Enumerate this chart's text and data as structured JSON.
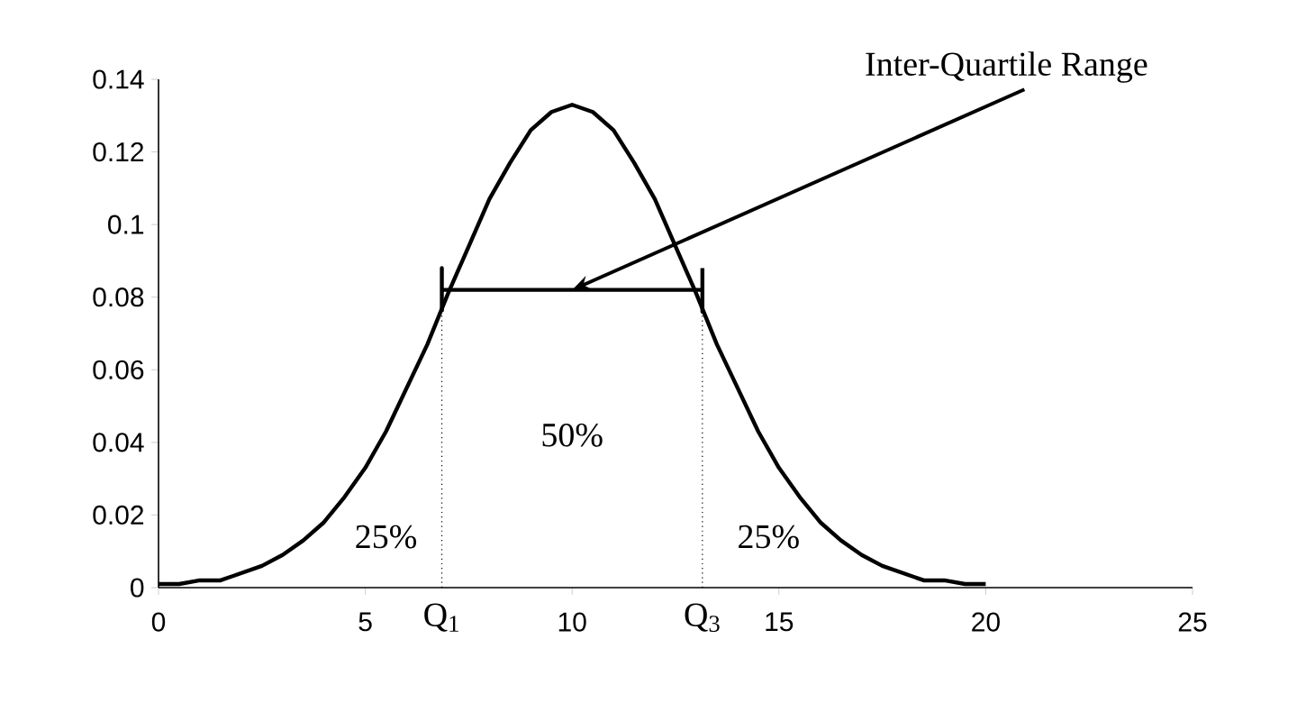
{
  "chart_data": {
    "type": "line",
    "xlim": [
      0,
      25
    ],
    "ylim": [
      0,
      0.14
    ],
    "xticks": [
      0,
      5,
      10,
      15,
      20,
      25
    ],
    "yticks": [
      0,
      0.02,
      0.04,
      0.06,
      0.08,
      0.1,
      0.12,
      0.14
    ],
    "grid": false,
    "legend": false,
    "marker": "none",
    "series": [
      {
        "color": "#000000",
        "line_style": "solid",
        "x": [
          0,
          0.5,
          1,
          1.5,
          2,
          2.5,
          3,
          3.5,
          4,
          4.5,
          5,
          5.5,
          6,
          6.5,
          7,
          7.5,
          8,
          8.5,
          9,
          9.5,
          10,
          10.5,
          11,
          11.5,
          12,
          12.5,
          13,
          13.5,
          14,
          14.5,
          15,
          15.5,
          16,
          16.5,
          17,
          17.5,
          18,
          18.5,
          19,
          19.5,
          20
        ],
        "values": [
          0.001,
          0.001,
          0.002,
          0.002,
          0.004,
          0.006,
          0.009,
          0.013,
          0.018,
          0.025,
          0.033,
          0.043,
          0.055,
          0.067,
          0.081,
          0.094,
          0.107,
          0.117,
          0.126,
          0.131,
          0.133,
          0.131,
          0.126,
          0.117,
          0.107,
          0.094,
          0.081,
          0.067,
          0.055,
          0.043,
          0.033,
          0.025,
          0.018,
          0.013,
          0.009,
          0.006,
          0.004,
          0.002,
          0.002,
          0.001,
          0.001
        ]
      },
      {
        "color": "#000000",
        "line_style": "solid",
        "x": [
          6.85,
          6.85,
          6.85,
          13.15,
          13.15,
          13.15
        ],
        "values": [
          0.076,
          0.088,
          0.082,
          0.082,
          0.076,
          0.088
        ]
      },
      {
        "color": "#000000",
        "line_style": "dotted",
        "x": [
          6.85,
          6.85
        ],
        "values": [
          0,
          0.078
        ]
      },
      {
        "color": "#000000",
        "line_style": "dotted",
        "x": [
          13.15,
          13.15
        ],
        "values": [
          0,
          0.078
        ]
      }
    ],
    "annotations": [
      {
        "text": "Inter-Quartile Range",
        "x": 10,
        "y": 0.082
      },
      {
        "text": "Q$_{1}$",
        "x": 6.85,
        "y": 0
      },
      {
        "text": "Q$_{3}$",
        "x": 13.15,
        "y": 0
      },
      "50%",
      "25%",
      "25%"
    ]
  }
}
